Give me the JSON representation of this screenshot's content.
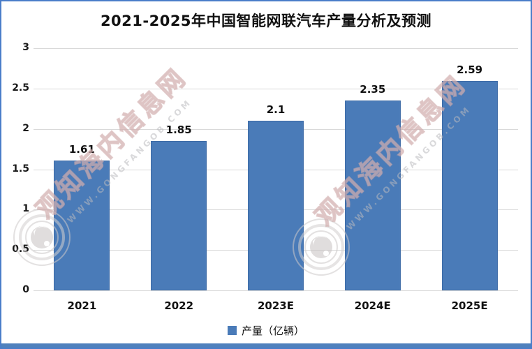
{
  "page": {
    "title": "2021-2025年中国智能网联汽车产量分析及预测"
  },
  "chart_data": {
    "type": "bar",
    "title": "2021-2025年中国智能网联汽车产量分析及预测",
    "categories": [
      "2021",
      "2022",
      "2023E",
      "2024E",
      "2025E"
    ],
    "series": [
      {
        "name": "产量（亿辆）",
        "values": [
          1.61,
          1.85,
          2.1,
          2.35,
          2.59
        ]
      }
    ],
    "value_labels": [
      "1.61",
      "1.85",
      "2.1",
      "2.35",
      "2.59"
    ],
    "ylim": [
      0,
      3
    ],
    "yticks": [
      0,
      0.5,
      1,
      1.5,
      2,
      2.5,
      3
    ],
    "grid": true,
    "legend_position": "bottom",
    "bar_color": "#4a7bb8"
  },
  "legend": {
    "label": "产量（亿辆）"
  },
  "watermark": {
    "text": "观知海内信息网",
    "url": "WWW.GONGFANGOB.COM"
  },
  "colors": {
    "bar": "#4a7bb8",
    "frame_border": "#4a7dc9",
    "gridline": "#d9d9d9",
    "bottom_band": "#4f81bd"
  }
}
